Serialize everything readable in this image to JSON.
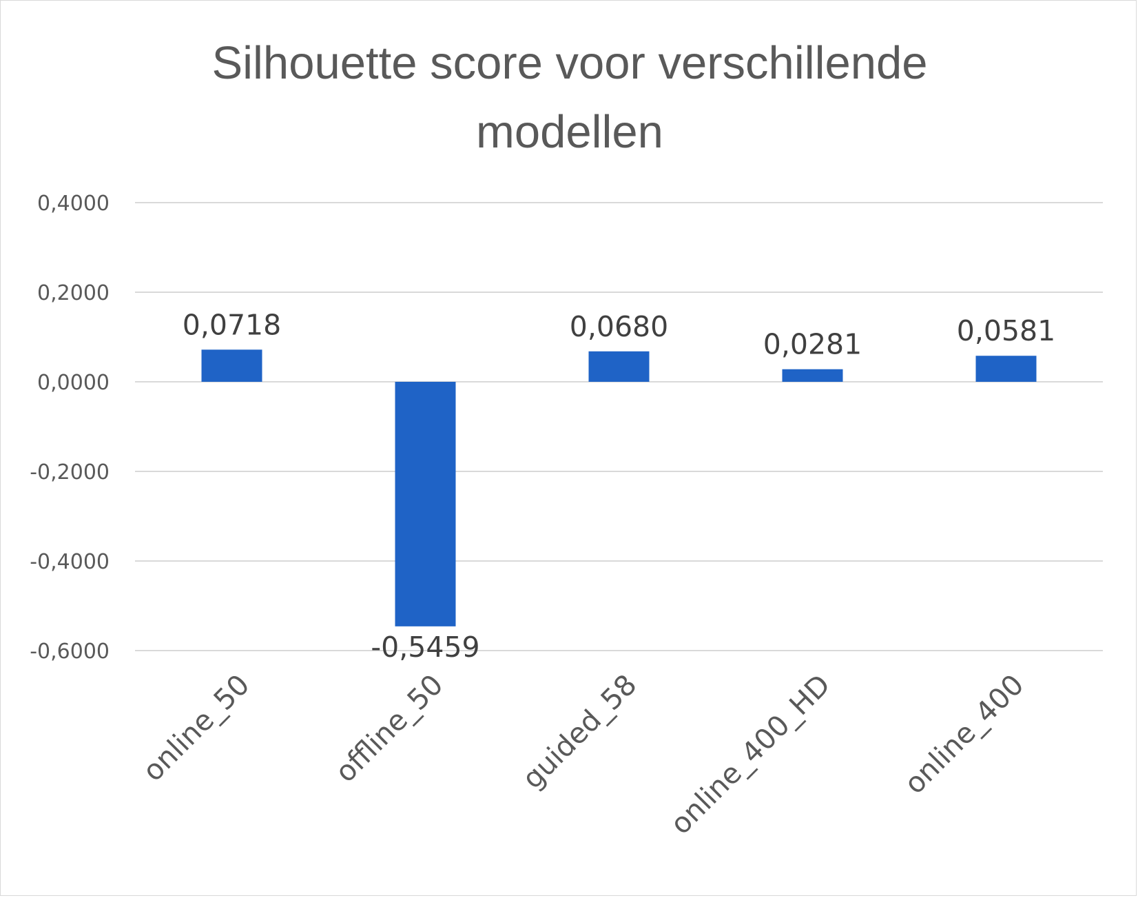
{
  "chart_data": {
    "type": "bar",
    "title_lines": [
      "Silhouette score voor verschillende",
      "modellen"
    ],
    "categories": [
      "online_50",
      "offline_50",
      "guided_58",
      "online_400_HD",
      "online_400"
    ],
    "values": [
      0.0718,
      -0.5459,
      0.068,
      0.0281,
      0.0581
    ],
    "data_labels": [
      "0,0718",
      "-0,5459",
      "0,0680",
      "0,0281",
      "0,0581"
    ],
    "y_ticks": [
      0.4,
      0.2,
      0.0,
      -0.2,
      -0.4,
      -0.6
    ],
    "y_tick_labels": [
      "0,4000",
      "0,2000",
      "0,0000",
      "-0,2000",
      "-0,4000",
      "-0,6000"
    ],
    "ylim": [
      -0.6,
      0.4
    ],
    "xlabel": "",
    "ylabel": "",
    "grid": true,
    "legend": "none",
    "bar_color": "#1f63c6"
  }
}
